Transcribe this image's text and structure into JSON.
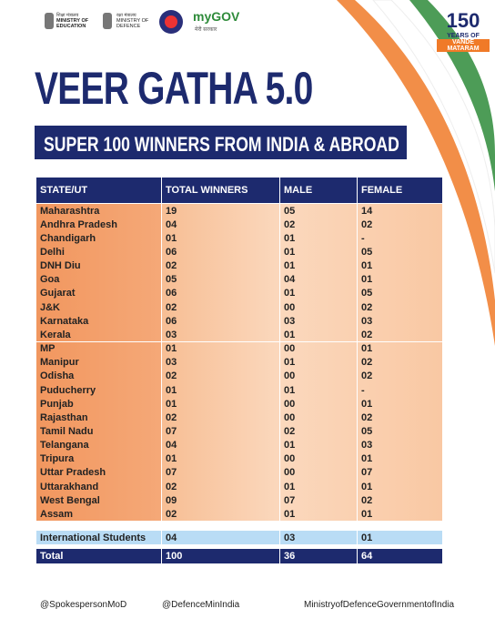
{
  "header": {
    "logos": [
      {
        "hindi": "शिक्षा मंत्रालय",
        "english": "MINISTRY OF EDUCATION"
      },
      {
        "hindi": "रक्षा मंत्रालय",
        "english": "MINISTRY OF DEFENCE"
      }
    ],
    "mygov": "myGOV",
    "mygov_hindi": "मेरी सरकार",
    "badge": {
      "number": "150",
      "line1": "YEARS OF",
      "line2": "VANDE MATARAM"
    }
  },
  "title": "VEER GATHA 5.0",
  "subtitle": "SUPER 100 WINNERS FROM INDIA & ABROAD",
  "table": {
    "columns": [
      "STATE/UT",
      "TOTAL WINNERS",
      "MALE",
      "FEMALE"
    ],
    "rows": [
      [
        "Maharashtra",
        "19",
        "05",
        "14"
      ],
      [
        "Andhra Pradesh",
        "04",
        "02",
        "02"
      ],
      [
        "Chandigarh",
        "01",
        "01",
        "-"
      ],
      [
        "Delhi",
        "06",
        "01",
        "05"
      ],
      [
        "DNH Diu",
        "02",
        "01",
        "01"
      ],
      [
        "Goa",
        "05",
        "04",
        "01"
      ],
      [
        "Gujarat",
        "06",
        "01",
        "05"
      ],
      [
        "J&K",
        "02",
        "00",
        "02"
      ],
      [
        "Karnataka",
        "06",
        "03",
        "03"
      ],
      [
        "Kerala",
        "03",
        "01",
        "02"
      ],
      [
        "MP",
        "01",
        "00",
        "01"
      ],
      [
        "Manipur",
        "03",
        "01",
        "02"
      ],
      [
        "Odisha",
        "02",
        "00",
        "02"
      ],
      [
        "Puducherry",
        "01",
        "01",
        "-"
      ],
      [
        "Punjab",
        "01",
        "00",
        "01"
      ],
      [
        "Rajasthan",
        "02",
        "00",
        "02"
      ],
      [
        "Tamil Nadu",
        "07",
        "02",
        "05"
      ],
      [
        "Telangana",
        "04",
        "01",
        "03"
      ],
      [
        "Tripura",
        "01",
        "00",
        "01"
      ],
      [
        "Uttar Pradesh",
        "07",
        "00",
        "07"
      ],
      [
        "Uttarakhand",
        "02",
        "01",
        "01"
      ],
      [
        "West Bengal",
        "09",
        "07",
        "02"
      ],
      [
        "Assam",
        "02",
        "01",
        "01"
      ]
    ],
    "international": [
      "International Students",
      "04",
      "03",
      "01"
    ],
    "total": [
      "Total",
      "100",
      "36",
      "64"
    ]
  },
  "footer": {
    "handles": [
      "@SpokespersonMoD",
      "@DefenceMinIndia",
      "MinistryofDefenceGovernmentofIndia"
    ]
  }
}
